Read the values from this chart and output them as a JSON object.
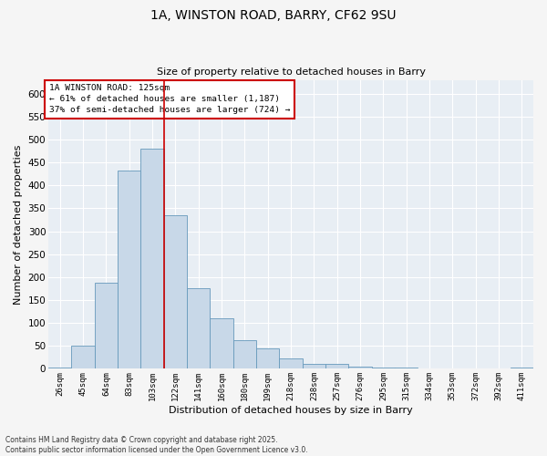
{
  "title_line1": "1A, WINSTON ROAD, BARRY, CF62 9SU",
  "title_line2": "Size of property relative to detached houses in Barry",
  "xlabel": "Distribution of detached houses by size in Barry",
  "ylabel": "Number of detached properties",
  "bar_color": "#c8d8e8",
  "bar_edge_color": "#6699bb",
  "background_color": "#e8eef4",
  "grid_color": "#ffffff",
  "vline_color": "#cc0000",
  "categories": [
    "26sqm",
    "45sqm",
    "64sqm",
    "83sqm",
    "103sqm",
    "122sqm",
    "141sqm",
    "160sqm",
    "180sqm",
    "199sqm",
    "218sqm",
    "238sqm",
    "257sqm",
    "276sqm",
    "295sqm",
    "315sqm",
    "334sqm",
    "353sqm",
    "372sqm",
    "392sqm",
    "411sqm"
  ],
  "values": [
    3,
    50,
    188,
    432,
    480,
    335,
    176,
    110,
    62,
    44,
    23,
    10,
    10,
    5,
    3,
    2,
    1,
    0,
    1,
    0,
    3
  ],
  "ylim": [
    0,
    630
  ],
  "yticks": [
    0,
    50,
    100,
    150,
    200,
    250,
    300,
    350,
    400,
    450,
    500,
    550,
    600
  ],
  "annotation_title": "1A WINSTON ROAD: 125sqm",
  "annotation_line1": "← 61% of detached houses are smaller (1,187)",
  "annotation_line2": "37% of semi-detached houses are larger (724) →",
  "footnote_line1": "Contains HM Land Registry data © Crown copyright and database right 2025.",
  "footnote_line2": "Contains public sector information licensed under the Open Government Licence v3.0.",
  "vline_index": 4.5
}
